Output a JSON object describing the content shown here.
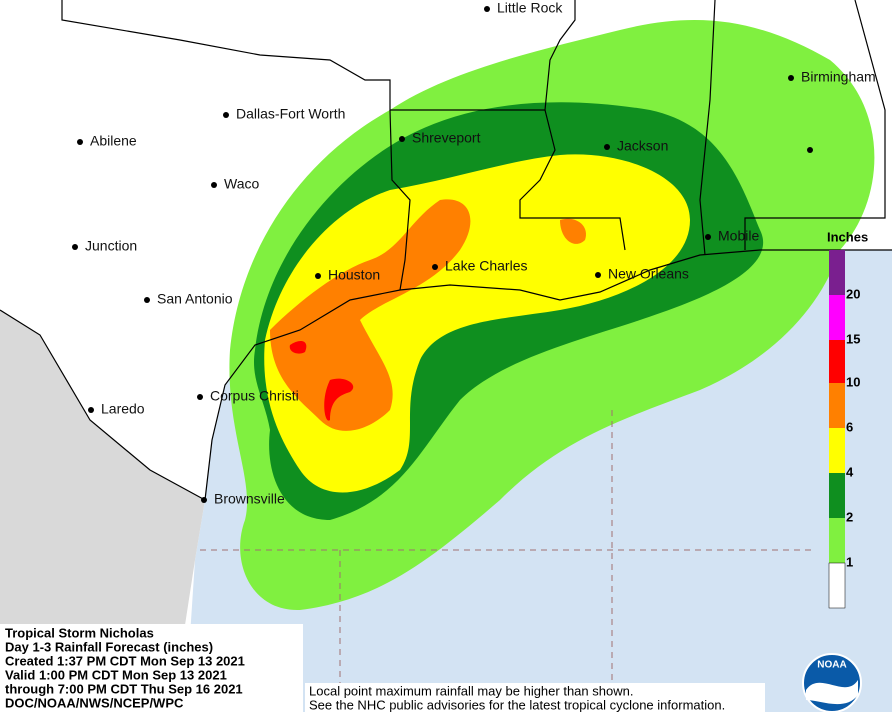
{
  "title": "Tropical Storm Nicholas",
  "info": {
    "lines": [
      "Tropical Storm Nicholas",
      "Day 1-3 Rainfall Forecast (inches)",
      "Created 1:37 PM CDT Mon Sep 13 2021",
      "Valid 1:00 PM CDT Mon Sep 13 2021",
      "through 7:00 PM CDT Thu Sep 16 2021",
      "DOC/NOAA/NWS/NCEP/WPC"
    ]
  },
  "note": {
    "lines": [
      "Local point maximum rainfall may be higher than shown.",
      "See the NHC public advisories for the latest tropical cyclone information."
    ]
  },
  "legend": {
    "title": "Inches",
    "labels": [
      "20",
      "15",
      "10",
      "6",
      "4",
      "2",
      "1"
    ]
  },
  "cities": [
    "Little Rock",
    "Dallas-Fort Worth",
    "Abilene",
    "Waco",
    "Junction",
    "San Antonio",
    "Laredo",
    "Shreveport",
    "Houston",
    "Lake Charles",
    "Corpus Christi",
    "Brownsville",
    "Jackson",
    "Birmingham",
    "Mobile",
    "New Orleans"
  ],
  "logo": "NOAA"
}
